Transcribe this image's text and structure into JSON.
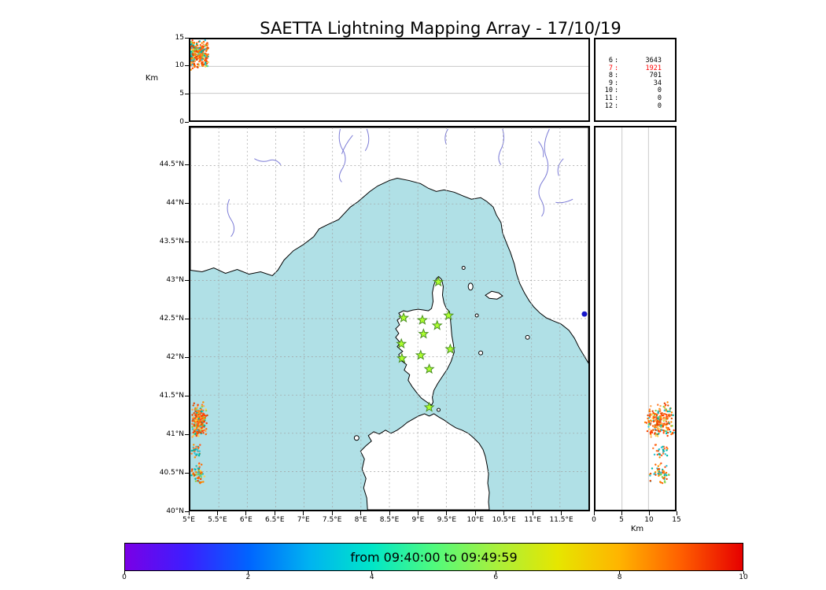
{
  "title": "SAETTA Lightning Mapping Array - 17/10/19",
  "colors": {
    "sea": "#b0e0e6",
    "land": "#ffffff",
    "coast": "#000000",
    "river": "#7b7bd6",
    "grid_dashed": "#a0a0a0",
    "grid_solid": "#c8c8c8",
    "star_fill": "#adff2f",
    "star_stroke": "#4a8f22",
    "highlight_red": "#ff0000",
    "blue_point": "#1515c8"
  },
  "altitude_panel": {
    "ylabel": "Km",
    "yticks": [
      "15",
      "10",
      "5",
      "0"
    ]
  },
  "stats_panel": {
    "rows": [
      {
        "level": "6",
        "count": "3643",
        "highlight": false
      },
      {
        "level": "7",
        "count": "1921",
        "highlight": true
      },
      {
        "level": "8",
        "count": "701",
        "highlight": false
      },
      {
        "level": "9",
        "count": "34",
        "highlight": false
      },
      {
        "level": "10",
        "count": "0",
        "highlight": false
      },
      {
        "level": "11",
        "count": "0",
        "highlight": false
      },
      {
        "level": "12",
        "count": "0",
        "highlight": false
      }
    ]
  },
  "map_panel": {
    "lat_ticks": [
      "44.5°N",
      "44°N",
      "43.5°N",
      "43°N",
      "42.5°N",
      "42°N",
      "41.5°N",
      "41°N",
      "40.5°N",
      "40°N"
    ],
    "lon_ticks": [
      "5°E",
      "5.5°E",
      "6°E",
      "6.5°E",
      "7°E",
      "7.5°E",
      "8°E",
      "8.5°E",
      "9°E",
      "9.5°E",
      "10°E",
      "10.5°E",
      "11°E",
      "11.5°E"
    ]
  },
  "right_panel": {
    "xticks": [
      "0",
      "5",
      "10",
      "15"
    ],
    "xlabel": "Km"
  },
  "colorbar": {
    "label": "from 09:40:00 to 09:49:59",
    "ticks": [
      "0",
      "2",
      "4",
      "6",
      "8",
      "10"
    ],
    "gradient": [
      "#7a00e6",
      "#3c1eff",
      "#0064ff",
      "#00b4f0",
      "#00e6c8",
      "#50fa7d",
      "#a8f03c",
      "#e6e600",
      "#ffb400",
      "#ff5f00",
      "#e60000"
    ]
  },
  "chart_data": {
    "type": "scatter",
    "title": "SAETTA Lightning Mapping Array - 17/10/19",
    "time_window": {
      "from": "09:40:00",
      "to": "09:49:59"
    },
    "colorbar_scale": {
      "min": 0,
      "max": 10
    },
    "map_extent": {
      "lon": [
        5,
        12
      ],
      "lat": [
        40,
        45
      ]
    },
    "altitude_axis_km": [
      0,
      15
    ],
    "station_count_table": [
      [
        6,
        3643
      ],
      [
        7,
        1921
      ],
      [
        8,
        701
      ],
      [
        9,
        34
      ],
      [
        10,
        0
      ],
      [
        11,
        0
      ],
      [
        12,
        0
      ]
    ],
    "stations_lonlat": [
      [
        9.36,
        42.98
      ],
      [
        8.75,
        42.51
      ],
      [
        9.08,
        42.48
      ],
      [
        9.54,
        42.54
      ],
      [
        9.34,
        42.41
      ],
      [
        9.1,
        42.3
      ],
      [
        8.71,
        42.17
      ],
      [
        9.57,
        42.1
      ],
      [
        9.05,
        42.02
      ],
      [
        8.72,
        41.98
      ],
      [
        9.2,
        41.84
      ],
      [
        9.2,
        41.34
      ]
    ],
    "lightning_clusters": [
      {
        "name": "west-main",
        "lon_range": [
          5.0,
          5.3
        ],
        "lat_range": [
          40.92,
          41.42
        ],
        "alt_range": [
          9.3,
          15.0
        ],
        "time_frac": [
          0.0,
          0.045
        ],
        "count": 240,
        "palette": [
          "#ff4800",
          "#ff6a00",
          "#ff8c00",
          "#ff3c00",
          "#e64500",
          "#ffa64d",
          "#ff7b2e",
          "#d94f00",
          "#ff5a1f",
          "#00b5a5",
          "#2fc4d8",
          "#82d44f",
          "#ffd24d"
        ]
      },
      {
        "name": "west-mid",
        "lon_range": [
          5.0,
          5.18
        ],
        "lat_range": [
          40.67,
          40.86
        ],
        "alt_range": [
          10.5,
          14.2
        ],
        "time_frac": [
          0.0,
          0.03
        ],
        "count": 30,
        "palette": [
          "#ff7b2e",
          "#ffa64d",
          "#00b5a5",
          "#ff5a1f",
          "#2fc4d8",
          "#ff8c00"
        ]
      },
      {
        "name": "west-south",
        "lon_range": [
          5.0,
          5.25
        ],
        "lat_range": [
          40.32,
          40.62
        ],
        "alt_range": [
          9.8,
          14.6
        ],
        "time_frac": [
          0.0,
          0.04
        ],
        "count": 60,
        "palette": [
          "#00b5a5",
          "#2fc4d8",
          "#ff8c00",
          "#ff6a00",
          "#82d44f",
          "#ffd24d",
          "#ff5a1f",
          "#e64500"
        ]
      }
    ],
    "isolated_point": {
      "lon": 11.93,
      "lat": 42.56,
      "color": "#1515c8"
    }
  }
}
